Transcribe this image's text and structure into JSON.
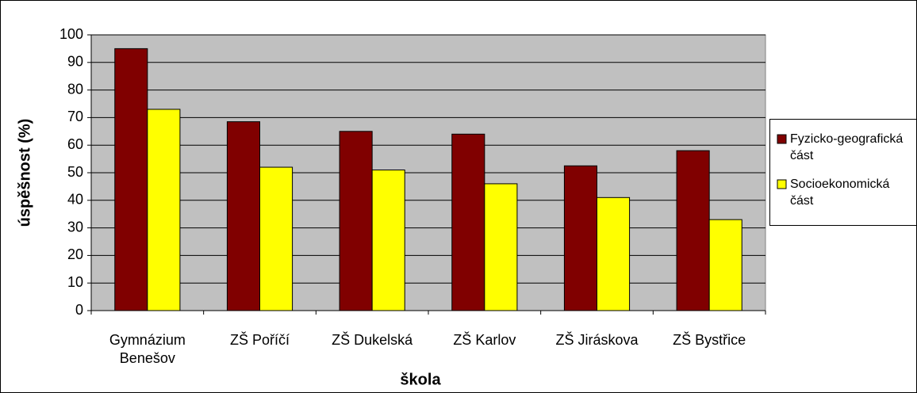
{
  "chart_data": {
    "type": "bar",
    "xlabel": "škola",
    "ylabel": "úspěšnost (%)",
    "categories": [
      "Gymnázium Benešov",
      "ZŠ Poříčí",
      "ZŠ Dukelská",
      "ZŠ Karlov",
      "ZŠ Jiráskova",
      "ZŠ Bystřice"
    ],
    "series": [
      {
        "name": "Fyzicko-geografická část",
        "color": "#800000",
        "values": [
          95,
          68.5,
          65,
          64,
          52.5,
          58
        ]
      },
      {
        "name": "Socioekonomická část",
        "color": "#ffff00",
        "values": [
          73,
          52,
          51,
          46,
          41,
          33
        ]
      }
    ],
    "ylim": [
      0,
      100
    ],
    "yticks": [
      0,
      10,
      20,
      30,
      40,
      50,
      60,
      70,
      80,
      90,
      100
    ],
    "grid": true,
    "legend": "right"
  }
}
